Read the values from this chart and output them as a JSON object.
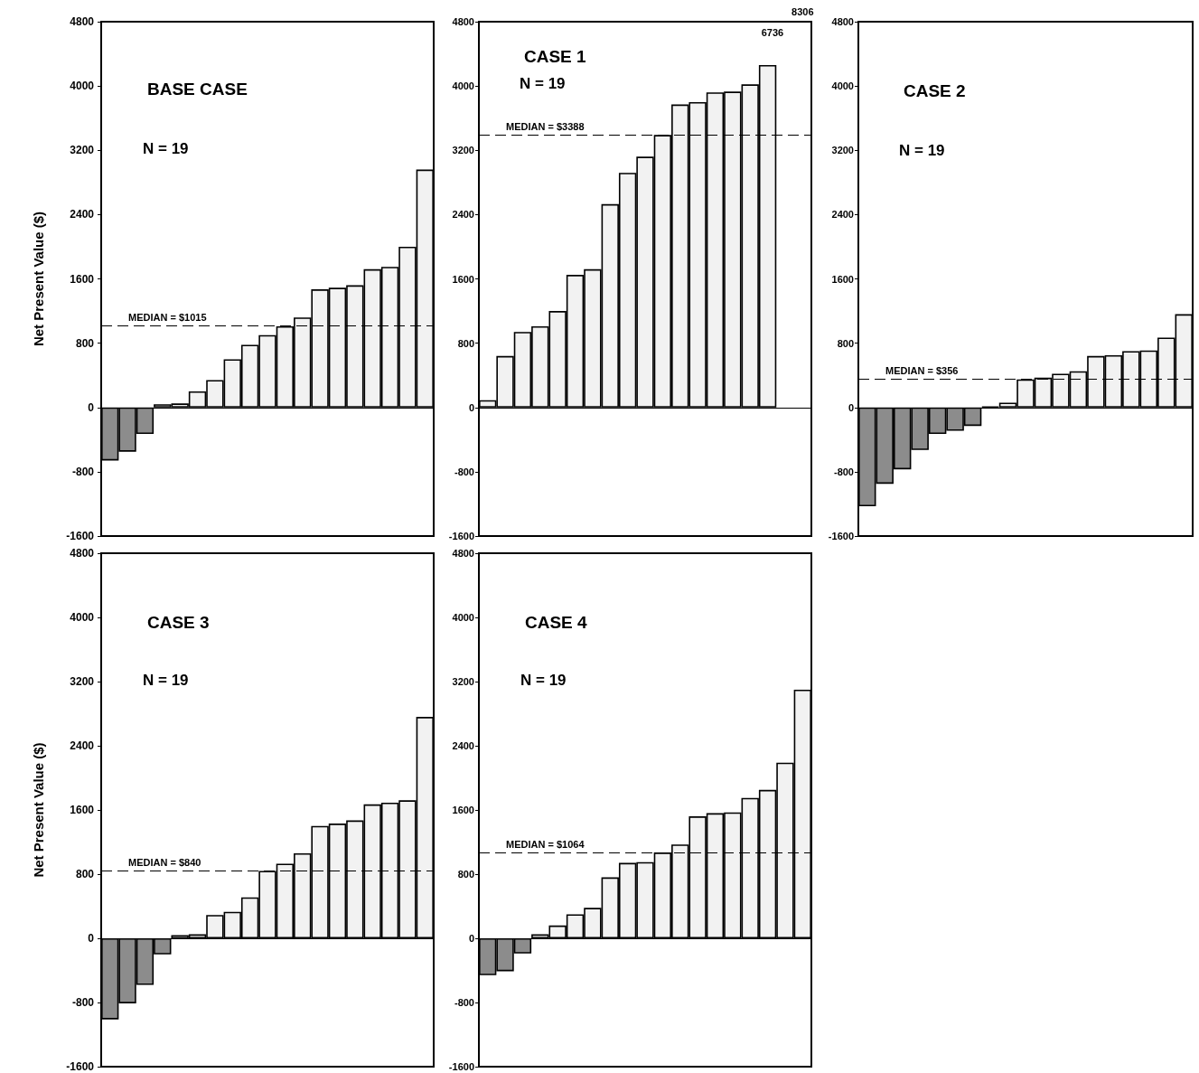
{
  "chart_data": [
    {
      "type": "bar",
      "title": "BASE CASE",
      "ylabel": "Net Present Value ($)",
      "annotations": [
        "N = 19"
      ],
      "categories": [
        null,
        null,
        null,
        null,
        null,
        null,
        null,
        null,
        null,
        null,
        null,
        null,
        null,
        null,
        null,
        null,
        null,
        null,
        null
      ],
      "values": [
        -660,
        -550,
        -330,
        40,
        50,
        200,
        340,
        600,
        780,
        900,
        1010,
        1120,
        1470,
        1490,
        1520,
        1720,
        1750,
        2000,
        2960
      ],
      "colors": [
        "#8c8c8c",
        "#8c8c8c",
        "#8c8c8c",
        "#f2f2f2",
        "#f2f2f2",
        "#f2f2f2",
        "#f2f2f2",
        "#f2f2f2",
        "#f2f2f2",
        "#f2f2f2",
        "#f2f2f2",
        "#f2f2f2",
        "#f2f2f2",
        "#f2f2f2",
        "#f2f2f2",
        "#f2f2f2",
        "#f2f2f2",
        "#f2f2f2",
        "#f2f2f2"
      ],
      "ylim": [
        -1600,
        4800
      ],
      "yticks": [
        -1600,
        -800,
        0,
        800,
        1600,
        2400,
        3200,
        4000,
        4800
      ],
      "tick_labels": "y",
      "ref_lines": [
        {
          "axis": "y",
          "value": 1015,
          "label": "MEDIAN = $1015",
          "line_style": "dashed"
        }
      ]
    },
    {
      "type": "bar",
      "title": "CASE 1",
      "annotations": [
        "N = 19",
        "6736",
        "8306"
      ],
      "categories": [
        null,
        null,
        null,
        null,
        null,
        null,
        null,
        null,
        null,
        null,
        null,
        null,
        null,
        null,
        null,
        null,
        null,
        null,
        null
      ],
      "values": [
        90,
        640,
        940,
        1010,
        1200,
        1650,
        1720,
        2530,
        2920,
        3120,
        3390,
        3770,
        3800,
        3920,
        3930,
        4020,
        4260,
        null,
        null
      ],
      "colors": [
        "#f2f2f2",
        "#f2f2f2",
        "#f2f2f2",
        "#f2f2f2",
        "#f2f2f2",
        "#f2f2f2",
        "#f2f2f2",
        "#f2f2f2",
        "#f2f2f2",
        "#f2f2f2",
        "#f2f2f2",
        "#f2f2f2",
        "#f2f2f2",
        "#f2f2f2",
        "#f2f2f2",
        "#f2f2f2",
        "#f2f2f2",
        "#f2f2f2",
        "#f2f2f2"
      ],
      "ylim": [
        -1600,
        4800
      ],
      "yticks": [
        -1600,
        -800,
        0,
        800,
        1600,
        2400,
        3200,
        4000,
        4800
      ],
      "tick_labels": "y",
      "ref_lines": [
        {
          "axis": "y",
          "value": 3388,
          "label": "MEDIAN = $3388",
          "line_style": "dashed"
        }
      ]
    },
    {
      "type": "bar",
      "title": "CASE 2",
      "annotations": [
        "N = 19"
      ],
      "categories": [
        null,
        null,
        null,
        null,
        null,
        null,
        null,
        null,
        null,
        null,
        null,
        null,
        null,
        null,
        null,
        null,
        null,
        null,
        null
      ],
      "values": [
        -1230,
        -950,
        -770,
        -530,
        -330,
        -290,
        -230,
        10,
        60,
        350,
        370,
        420,
        450,
        640,
        650,
        700,
        710,
        870,
        1160
      ],
      "colors": [
        "#8c8c8c",
        "#8c8c8c",
        "#8c8c8c",
        "#8c8c8c",
        "#8c8c8c",
        "#8c8c8c",
        "#8c8c8c",
        "#000000",
        "#f2f2f2",
        "#f2f2f2",
        "#f2f2f2",
        "#f2f2f2",
        "#f2f2f2",
        "#f2f2f2",
        "#f2f2f2",
        "#f2f2f2",
        "#f2f2f2",
        "#f2f2f2",
        "#f2f2f2"
      ],
      "ylim": [
        -1600,
        4800
      ],
      "yticks": [
        -1600,
        -800,
        0,
        800,
        1600,
        2400,
        3200,
        4000,
        4800
      ],
      "tick_labels": "y",
      "ref_lines": [
        {
          "axis": "y",
          "value": 356,
          "label": "MEDIAN = $356",
          "line_style": "dashed"
        }
      ]
    },
    {
      "type": "bar",
      "title": "CASE 3",
      "ylabel": "Net Present Value ($)",
      "annotations": [
        "N = 19"
      ],
      "categories": [
        null,
        null,
        null,
        null,
        null,
        null,
        null,
        null,
        null,
        null,
        null,
        null,
        null,
        null,
        null,
        null,
        null,
        null,
        null
      ],
      "values": [
        -1010,
        -810,
        -580,
        -200,
        40,
        50,
        290,
        330,
        510,
        840,
        930,
        1060,
        1400,
        1430,
        1470,
        1670,
        1690,
        1720,
        2760
      ],
      "colors": [
        "#8c8c8c",
        "#8c8c8c",
        "#8c8c8c",
        "#8c8c8c",
        "#f2f2f2",
        "#f2f2f2",
        "#f2f2f2",
        "#f2f2f2",
        "#f2f2f2",
        "#f2f2f2",
        "#f2f2f2",
        "#f2f2f2",
        "#f2f2f2",
        "#f2f2f2",
        "#f2f2f2",
        "#f2f2f2",
        "#f2f2f2",
        "#f2f2f2",
        "#f2f2f2"
      ],
      "ylim": [
        -1600,
        4800
      ],
      "yticks": [
        -1600,
        -800,
        0,
        800,
        1600,
        2400,
        3200,
        4000,
        4800
      ],
      "tick_labels": "y",
      "ref_lines": [
        {
          "axis": "y",
          "value": 840,
          "label": "MEDIAN = $840",
          "line_style": "dashed"
        }
      ]
    },
    {
      "type": "bar",
      "title": "CASE 4",
      "annotations": [
        "N = 19"
      ],
      "categories": [
        null,
        null,
        null,
        null,
        null,
        null,
        null,
        null,
        null,
        null,
        null,
        null,
        null,
        null,
        null,
        null,
        null,
        null,
        null
      ],
      "values": [
        -460,
        -410,
        -190,
        50,
        160,
        300,
        380,
        760,
        940,
        950,
        1070,
        1170,
        1520,
        1560,
        1570,
        1750,
        1850,
        2190,
        3100
      ],
      "colors": [
        "#8c8c8c",
        "#8c8c8c",
        "#8c8c8c",
        "#f2f2f2",
        "#f2f2f2",
        "#f2f2f2",
        "#f2f2f2",
        "#f2f2f2",
        "#f2f2f2",
        "#f2f2f2",
        "#f2f2f2",
        "#f2f2f2",
        "#f2f2f2",
        "#f2f2f2",
        "#f2f2f2",
        "#f2f2f2",
        "#f2f2f2",
        "#f2f2f2",
        "#f2f2f2"
      ],
      "ylim": [
        -1600,
        4800
      ],
      "yticks": [
        -1600,
        -800,
        0,
        800,
        1600,
        2400,
        3200,
        4000,
        4800
      ],
      "tick_labels": "y",
      "ref_lines": [
        {
          "axis": "y",
          "value": 1064,
          "label": "MEDIAN = $1064",
          "line_style": "dashed"
        }
      ]
    }
  ]
}
